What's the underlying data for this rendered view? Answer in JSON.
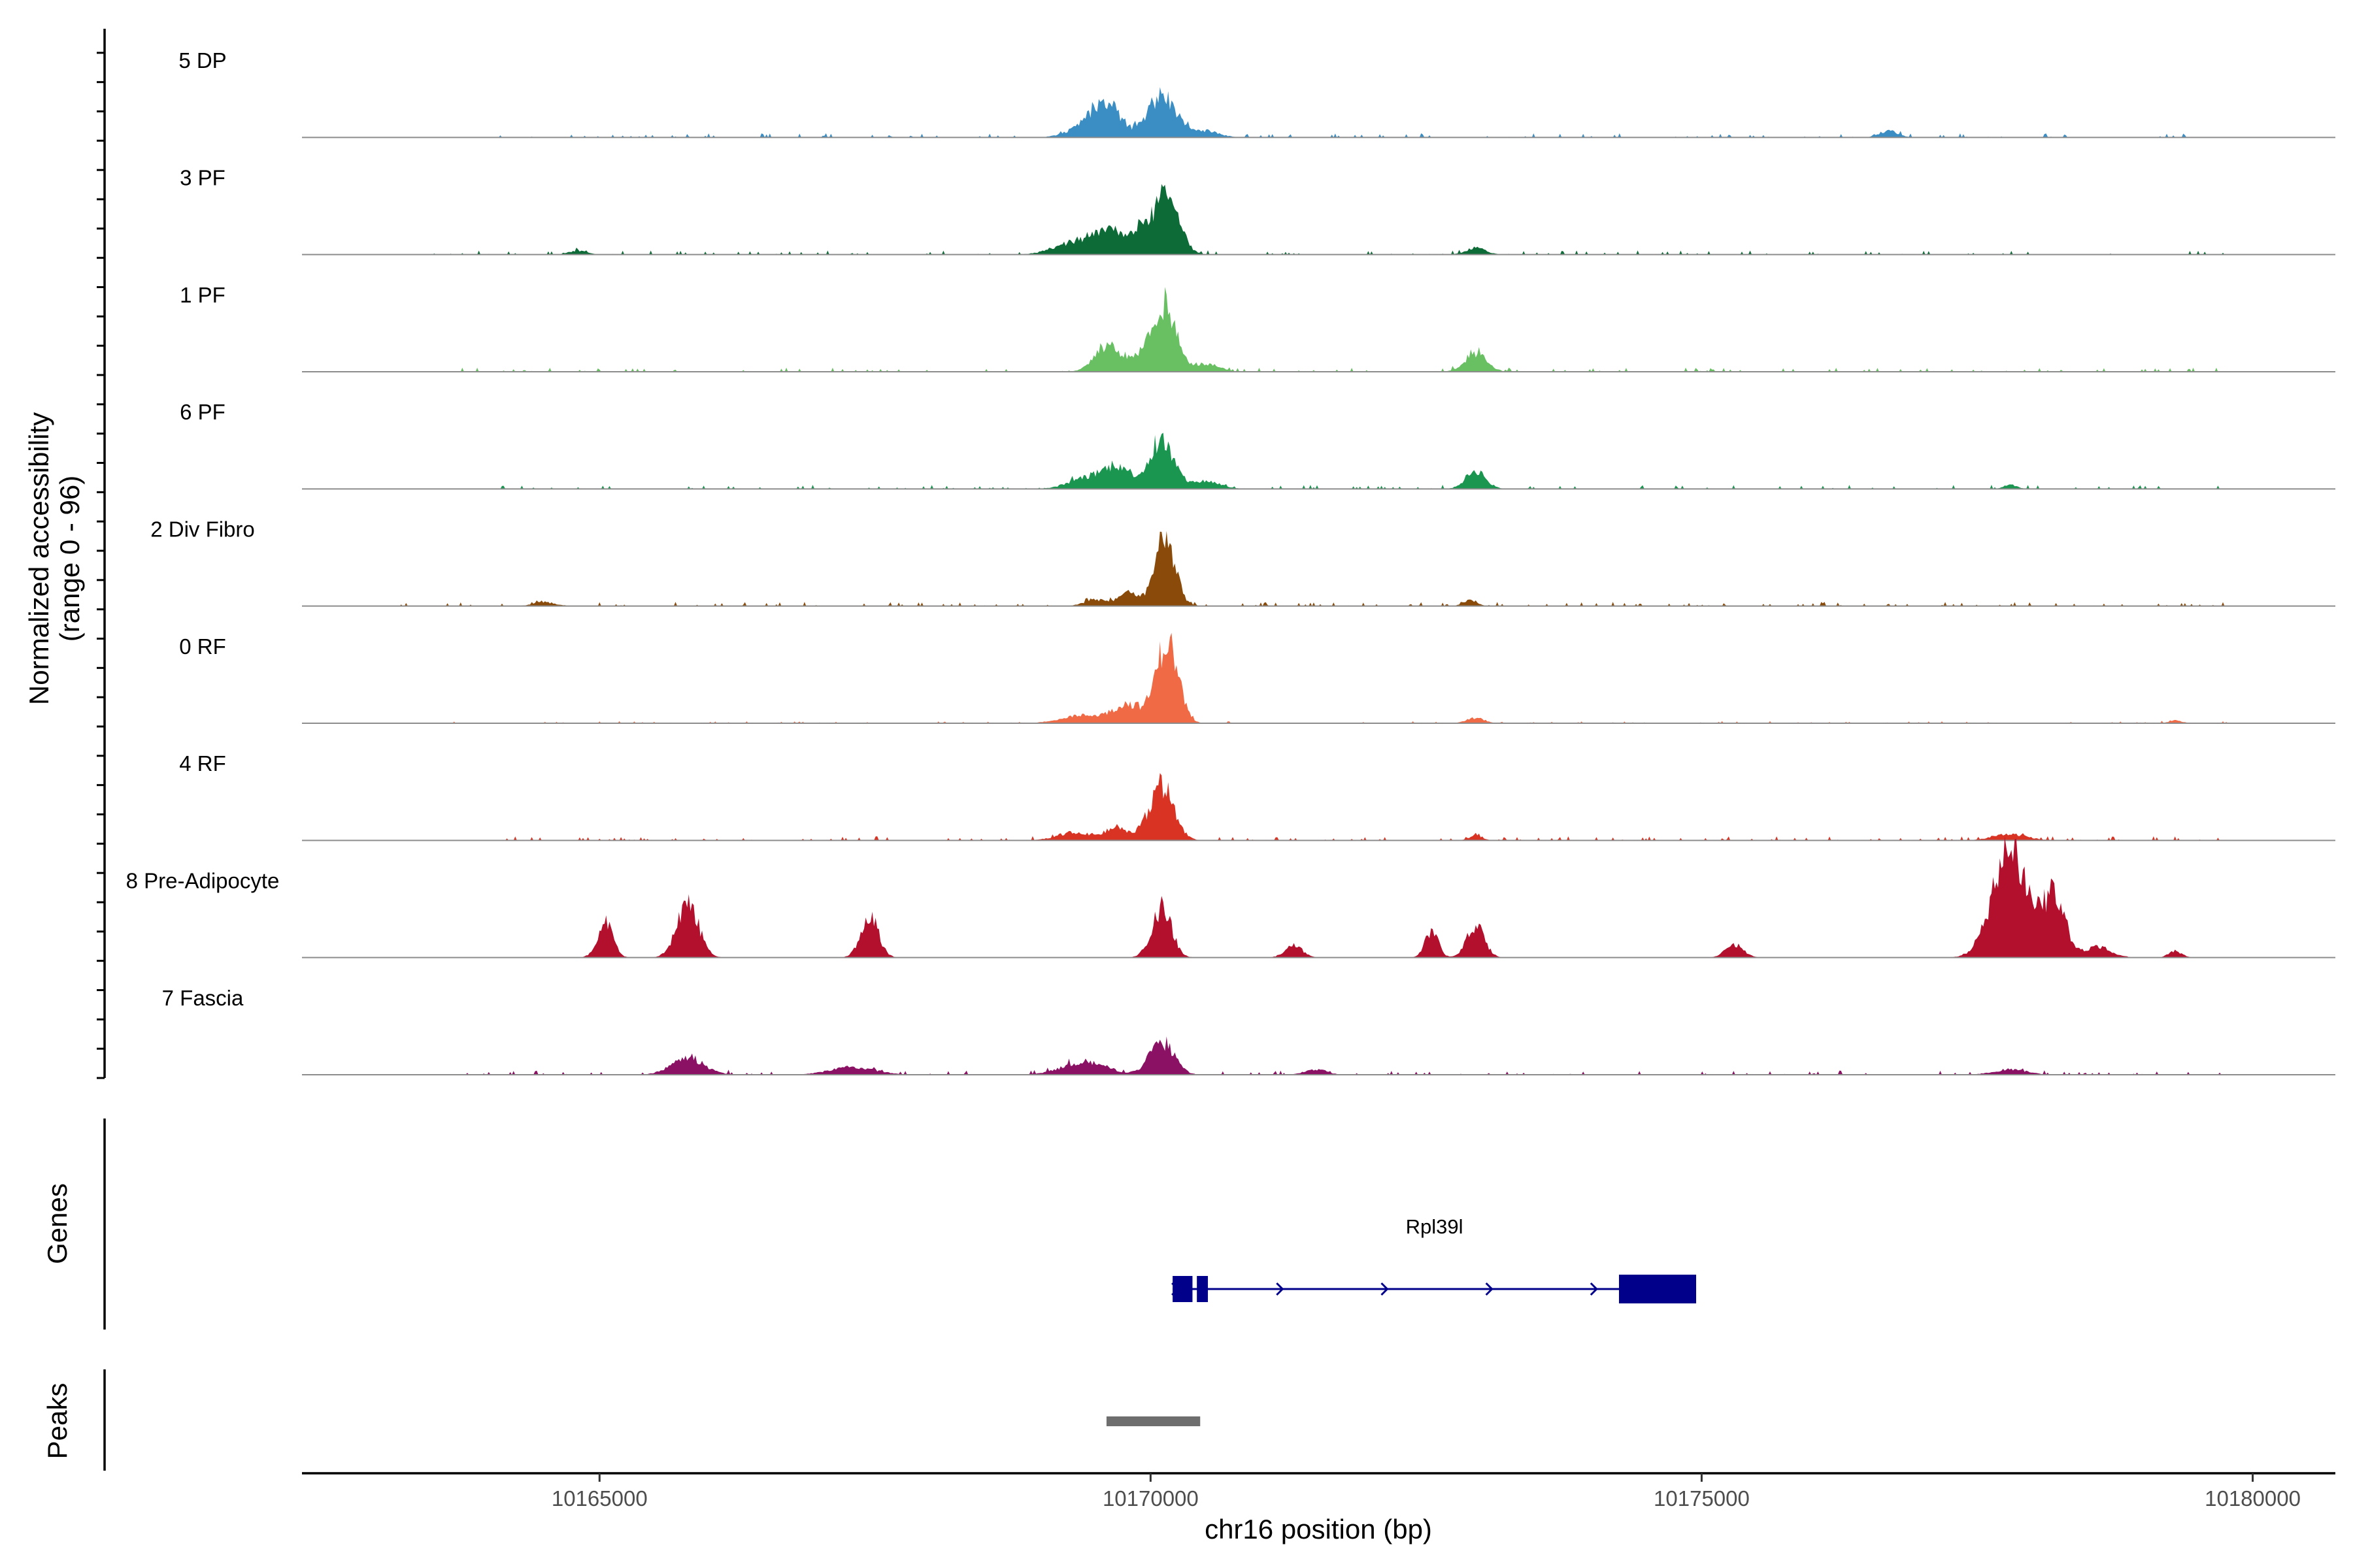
{
  "chart_data": {
    "type": "area",
    "title": "",
    "xlabel": "chr16 position (bp)",
    "ylabel": "Normalized accessibility\n(range 0 - 96)",
    "y_range": [
      0,
      96
    ],
    "xlim": [
      10162300,
      10180750
    ],
    "x_ticks": [
      10165000,
      10170000,
      10175000,
      10180000
    ],
    "tracks": [
      {
        "name": "5 DP",
        "color": "#3b8ec4",
        "peaks": [
          [
            10169600,
            25,
            120
          ],
          [
            10170100,
            32,
            130
          ],
          [
            10169400,
            8,
            150
          ],
          [
            10170500,
            5,
            120
          ],
          [
            10176700,
            5,
            80
          ]
        ],
        "baseline": [
          10164000,
          10179800
        ],
        "noise": 2
      },
      {
        "name": "3 PF",
        "color": "#0c6b36",
        "peaks": [
          [
            10170150,
            43,
            110
          ],
          [
            10169600,
            17,
            130
          ],
          [
            10169900,
            18,
            120
          ],
          [
            10169300,
            9,
            180
          ],
          [
            10172950,
            5,
            90
          ],
          [
            10164800,
            3,
            80
          ]
        ],
        "baseline": [
          10163400,
          10179800
        ],
        "noise": 2
      },
      {
        "name": "1 PF",
        "color": "#69c063",
        "peaks": [
          [
            10170130,
            50,
            100
          ],
          [
            10169600,
            20,
            110
          ],
          [
            10169900,
            12,
            120
          ],
          [
            10170500,
            6,
            120
          ],
          [
            10172950,
            14,
            100
          ]
        ],
        "baseline": [
          10163600,
          10179800
        ],
        "noise": 2
      },
      {
        "name": "6 PF",
        "color": "#1b9650",
        "peaks": [
          [
            10170100,
            36,
            110
          ],
          [
            10169700,
            17,
            130
          ],
          [
            10169400,
            8,
            150
          ],
          [
            10170500,
            6,
            130
          ],
          [
            10172950,
            14,
            90
          ],
          [
            10177800,
            3,
            60
          ]
        ],
        "baseline": [
          10164000,
          10179800
        ],
        "noise": 2
      },
      {
        "name": "2 Div Fibro",
        "color": "#8a4b0a",
        "peaks": [
          [
            10170130,
            55,
            90
          ],
          [
            10169800,
            10,
            90
          ],
          [
            10169500,
            5,
            100
          ],
          [
            10172900,
            5,
            60
          ],
          [
            10164500,
            3,
            100
          ]
        ],
        "baseline": [
          10163200,
          10179800
        ],
        "noise": 2
      },
      {
        "name": "0 RF",
        "color": "#f06a46",
        "peaks": [
          [
            10170150,
            62,
            100
          ],
          [
            10169800,
            14,
            130
          ],
          [
            10169400,
            6,
            200
          ],
          [
            10172950,
            4,
            80
          ],
          [
            10179300,
            2,
            60
          ]
        ],
        "baseline": [
          10163200,
          10179800
        ],
        "noise": 1
      },
      {
        "name": "4 RF",
        "color": "#d93324",
        "peaks": [
          [
            10170100,
            42,
            110
          ],
          [
            10169700,
            9,
            120
          ],
          [
            10169300,
            6,
            150
          ],
          [
            10172950,
            4,
            60
          ],
          [
            10177800,
            5,
            150
          ]
        ],
        "baseline": [
          10164000,
          10179800
        ],
        "noise": 2
      },
      {
        "name": "8 Pre-Adipocyte",
        "color": "#b2102d",
        "peaks": [
          [
            10165050,
            27,
            70
          ],
          [
            10165800,
            40,
            100
          ],
          [
            10167450,
            32,
            80
          ],
          [
            10170100,
            38,
            90
          ],
          [
            10171300,
            9,
            80
          ],
          [
            10172550,
            20,
            60
          ],
          [
            10172950,
            24,
            80
          ],
          [
            10175300,
            10,
            80
          ],
          [
            10177800,
            80,
            160
          ],
          [
            10178200,
            45,
            100
          ],
          [
            10178600,
            8,
            120
          ],
          [
            10179300,
            5,
            60
          ]
        ],
        "baseline": null,
        "noise": 0
      },
      {
        "name": "7 Fascia",
        "color": "#8a1163",
        "peaks": [
          [
            10165800,
            12,
            150
          ],
          [
            10169400,
            10,
            200
          ],
          [
            10170100,
            25,
            110
          ],
          [
            10167300,
            6,
            200
          ],
          [
            10171500,
            4,
            100
          ],
          [
            10177800,
            4,
            150
          ]
        ],
        "baseline": [
          10163600,
          10179800
        ],
        "noise": 2
      }
    ],
    "genes": [
      {
        "name": "Rpl39l",
        "strand": "+",
        "start": 10170200,
        "end": 10174950,
        "exons": [
          [
            10170200,
            10170380
          ],
          [
            10170420,
            10170520
          ],
          [
            10174250,
            10174950
          ]
        ]
      }
    ],
    "peaks_track": [
      [
        10169600,
        10170450
      ]
    ],
    "gene_color": "#00008b",
    "peak_color": "#6e6e6e",
    "panel_labels": {
      "genes": "Genes",
      "peaks": "Peaks"
    }
  }
}
